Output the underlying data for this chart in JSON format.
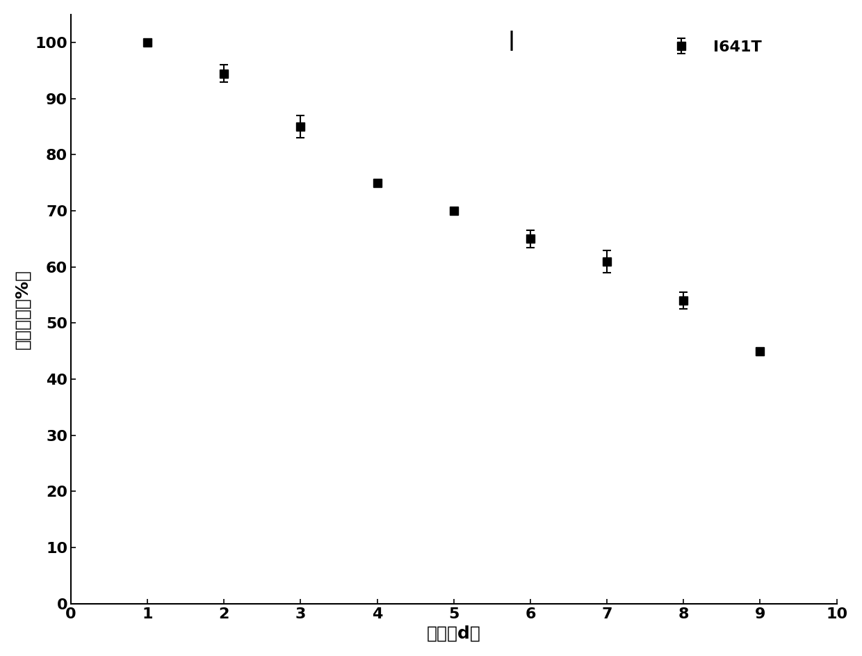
{
  "x": [
    1,
    2,
    3,
    4,
    5,
    6,
    7,
    8,
    9
  ],
  "y": [
    100,
    94.5,
    85,
    75,
    70,
    65,
    61,
    54,
    45
  ],
  "yerr": [
    0,
    1.5,
    2.0,
    0,
    0,
    1.5,
    2.0,
    1.5,
    0
  ],
  "line_color": "#000000",
  "marker": "s",
  "marker_size": 8,
  "line_width": 1.5,
  "xlabel": "时间（d）",
  "ylabel": "相对酶活（%）",
  "xlim": [
    0,
    10
  ],
  "ylim": [
    0,
    105
  ],
  "xticks": [
    0,
    1,
    2,
    3,
    4,
    5,
    6,
    7,
    8,
    9,
    10
  ],
  "yticks": [
    0,
    10,
    20,
    30,
    40,
    50,
    60,
    70,
    80,
    90,
    100
  ],
  "legend_label": "I641T",
  "legend_fontsize": 16,
  "axis_fontsize": 18,
  "tick_fontsize": 16,
  "background_color": "#ffffff"
}
